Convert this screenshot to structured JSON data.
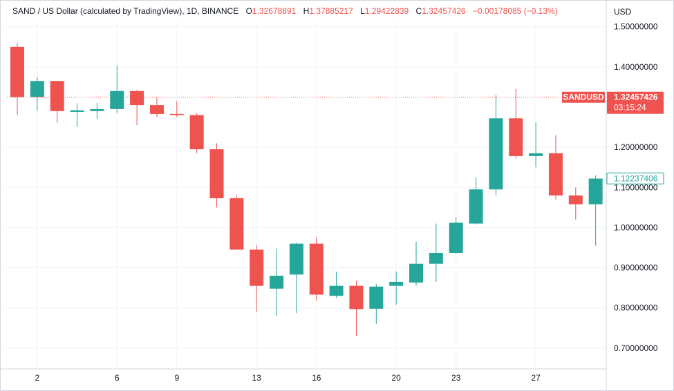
{
  "header": {
    "symbol_title": "SAND / US Dollar (calculated by TradingView), 1D, BINANCE",
    "o_label": "O",
    "o_value": "1.32678891",
    "h_label": "H",
    "h_value": "1.37885217",
    "l_label": "L",
    "l_value": "1.29422839",
    "c_label": "C",
    "c_value": "1.32457426",
    "change": "−0.00178085 (−0.13%)"
  },
  "price_axis": {
    "currency": "USD",
    "last_price_label": "SANDUSD",
    "last_price": "1.32457426",
    "countdown": "03:15:24",
    "secondary_price": "1.12237406"
  },
  "colors": {
    "up": "#26a69a",
    "down": "#ef5350",
    "grid": "#f0f3fa",
    "text": "#131722"
  },
  "chart_data": {
    "type": "candlestick",
    "y_ticks": [
      "1.50000000",
      "1.40000000",
      "1.20000000",
      "1.10000000",
      "1.00000000",
      "0.90000000",
      "0.80000000",
      "0.70000000"
    ],
    "ylim": [
      0.655,
      1.515
    ],
    "x_tick_labels": [
      {
        "day": 2,
        "label": "2"
      },
      {
        "day": 6,
        "label": "6"
      },
      {
        "day": 9,
        "label": "9"
      },
      {
        "day": 13,
        "label": "13"
      },
      {
        "day": 16,
        "label": "16"
      },
      {
        "day": 20,
        "label": "20"
      },
      {
        "day": 23,
        "label": "23"
      },
      {
        "day": 27,
        "label": "27"
      }
    ],
    "last_price_value": 1.32457426,
    "secondary_price_value": 1.12237406,
    "candles": [
      {
        "day": 1,
        "open": 1.45,
        "high": 1.46,
        "low": 1.28,
        "close": 1.325
      },
      {
        "day": 2,
        "open": 1.325,
        "high": 1.375,
        "low": 1.29,
        "close": 1.365
      },
      {
        "day": 3,
        "open": 1.365,
        "high": 1.365,
        "low": 1.26,
        "close": 1.29
      },
      {
        "day": 4,
        "open": 1.288,
        "high": 1.31,
        "low": 1.25,
        "close": 1.292
      },
      {
        "day": 5,
        "open": 1.29,
        "high": 1.31,
        "low": 1.27,
        "close": 1.295
      },
      {
        "day": 6,
        "open": 1.295,
        "high": 1.403,
        "low": 1.285,
        "close": 1.34
      },
      {
        "day": 7,
        "open": 1.34,
        "high": 1.343,
        "low": 1.255,
        "close": 1.305
      },
      {
        "day": 8,
        "open": 1.305,
        "high": 1.325,
        "low": 1.275,
        "close": 1.283
      },
      {
        "day": 9,
        "open": 1.283,
        "high": 1.315,
        "low": 1.275,
        "close": 1.28
      },
      {
        "day": 10,
        "open": 1.28,
        "high": 1.285,
        "low": 1.185,
        "close": 1.195
      },
      {
        "day": 11,
        "open": 1.195,
        "high": 1.21,
        "low": 1.05,
        "close": 1.073
      },
      {
        "day": 12,
        "open": 1.073,
        "high": 1.08,
        "low": 0.945,
        "close": 0.945
      },
      {
        "day": 13,
        "open": 0.945,
        "high": 0.957,
        "low": 0.79,
        "close": 0.855
      },
      {
        "day": 14,
        "open": 0.848,
        "high": 0.948,
        "low": 0.78,
        "close": 0.88
      },
      {
        "day": 15,
        "open": 0.883,
        "high": 0.962,
        "low": 0.787,
        "close": 0.96
      },
      {
        "day": 16,
        "open": 0.96,
        "high": 0.975,
        "low": 0.818,
        "close": 0.833
      },
      {
        "day": 17,
        "open": 0.83,
        "high": 0.89,
        "low": 0.825,
        "close": 0.855
      },
      {
        "day": 18,
        "open": 0.855,
        "high": 0.868,
        "low": 0.73,
        "close": 0.797
      },
      {
        "day": 19,
        "open": 0.798,
        "high": 0.86,
        "low": 0.76,
        "close": 0.853
      },
      {
        "day": 20,
        "open": 0.855,
        "high": 0.89,
        "low": 0.808,
        "close": 0.865
      },
      {
        "day": 21,
        "open": 0.863,
        "high": 0.965,
        "low": 0.855,
        "close": 0.91
      },
      {
        "day": 22,
        "open": 0.91,
        "high": 1.01,
        "low": 0.865,
        "close": 0.937
      },
      {
        "day": 23,
        "open": 0.937,
        "high": 1.025,
        "low": 0.935,
        "close": 1.012
      },
      {
        "day": 24,
        "open": 1.01,
        "high": 1.125,
        "low": 1.008,
        "close": 1.095
      },
      {
        "day": 25,
        "open": 1.095,
        "high": 1.33,
        "low": 1.08,
        "close": 1.272
      },
      {
        "day": 26,
        "open": 1.272,
        "high": 1.345,
        "low": 1.172,
        "close": 1.178
      },
      {
        "day": 27,
        "open": 1.178,
        "high": 1.262,
        "low": 1.15,
        "close": 1.185
      },
      {
        "day": 28,
        "open": 1.185,
        "high": 1.23,
        "low": 1.07,
        "close": 1.08
      },
      {
        "day": 29,
        "open": 1.08,
        "high": 1.1,
        "low": 1.02,
        "close": 1.058
      },
      {
        "day": 30,
        "open": 1.058,
        "high": 1.13,
        "low": 0.955,
        "close": 1.122
      }
    ]
  }
}
